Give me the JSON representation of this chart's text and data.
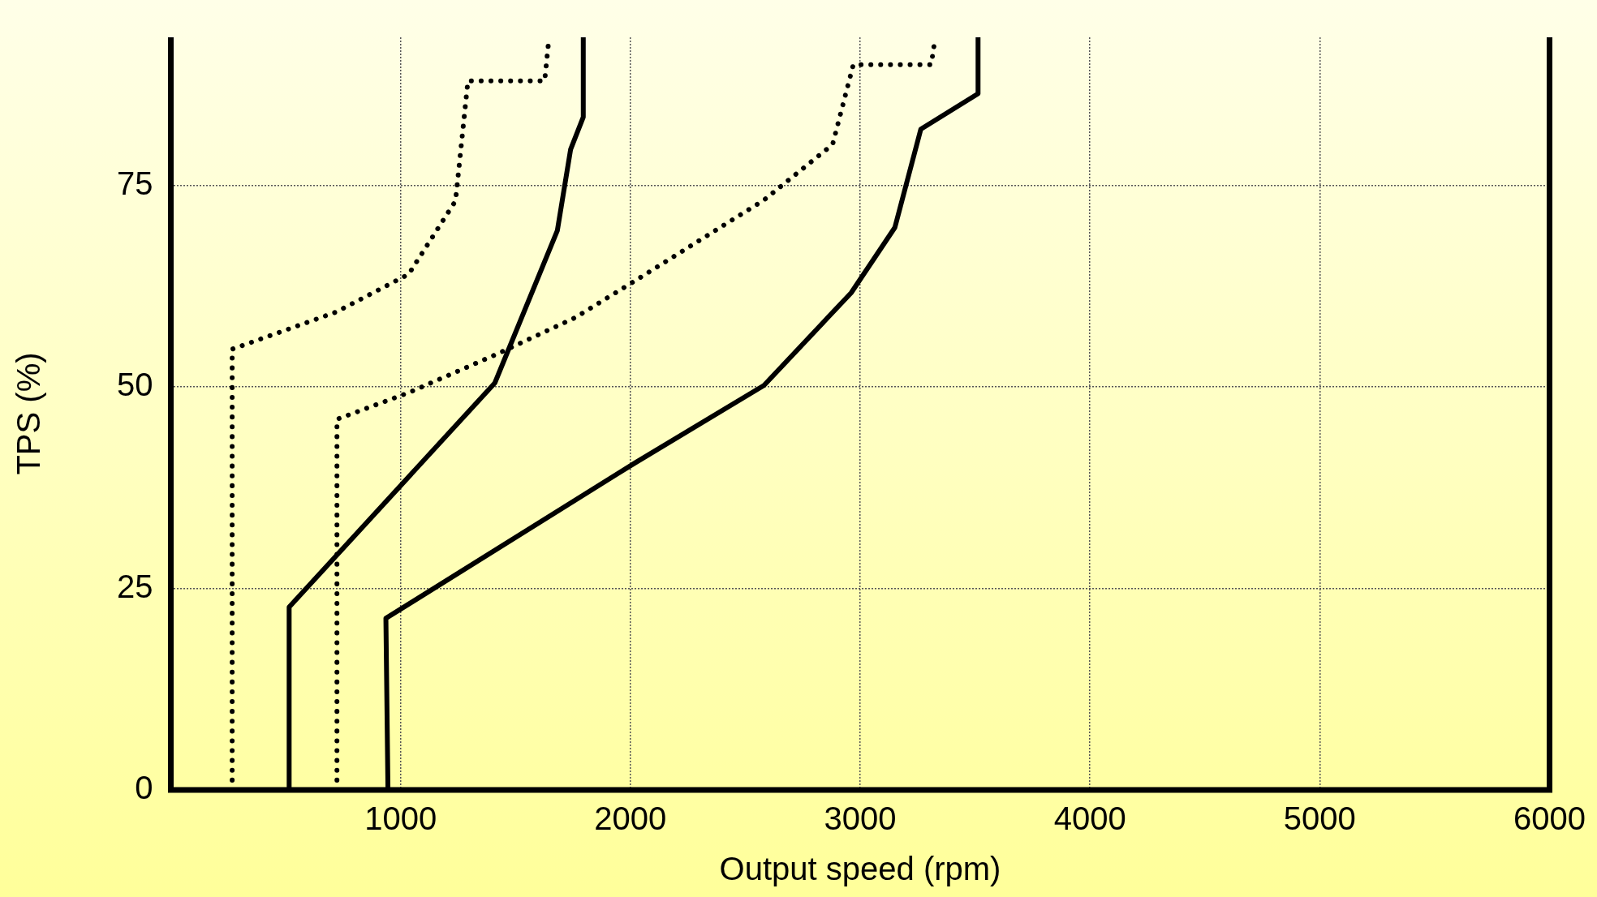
{
  "chart_data": {
    "type": "line",
    "xlabel": "Output speed (rpm)",
    "ylabel": "TPS (%)",
    "xlim": [
      0,
      6000
    ],
    "xticks": [
      1000,
      2000,
      3000,
      4000,
      5000,
      6000
    ],
    "ylim": [
      0,
      93.4
    ],
    "yticks": [
      0,
      25,
      50,
      75
    ],
    "grid": true,
    "legend": false,
    "marker": "none",
    "series": [
      {
        "color": "#000000",
        "line_style": "dotted",
        "x": [
          267,
          267,
          719,
          1035,
          1239,
          1293,
          1627,
          1646
        ],
        "values": [
          0,
          54.7,
          59.3,
          64.0,
          73.1,
          88.0,
          88.0,
          93.4
        ]
      },
      {
        "color": "#000000",
        "line_style": "solid",
        "x": [
          515,
          515,
          1410,
          1682,
          1740,
          1795,
          1795
        ],
        "values": [
          0,
          22.7,
          50.5,
          69.4,
          79.5,
          83.5,
          93.4
        ]
      },
      {
        "color": "#000000",
        "line_style": "dotted",
        "x": [
          723,
          723,
          1035,
          1420,
          1759,
          2021,
          2581,
          2880,
          2970,
          3309,
          3327
        ],
        "values": [
          0,
          46.0,
          49.3,
          54.1,
          58.6,
          63.2,
          73.2,
          80.1,
          90.0,
          90.0,
          93.4
        ]
      },
      {
        "color": "#000000",
        "line_style": "solid",
        "x": [
          945,
          936,
          2021,
          2581,
          2961,
          3151,
          3264,
          3513,
          3513
        ],
        "values": [
          0,
          21.3,
          40.6,
          50.2,
          61.7,
          69.8,
          82.0,
          86.4,
          93.4
        ]
      }
    ]
  }
}
